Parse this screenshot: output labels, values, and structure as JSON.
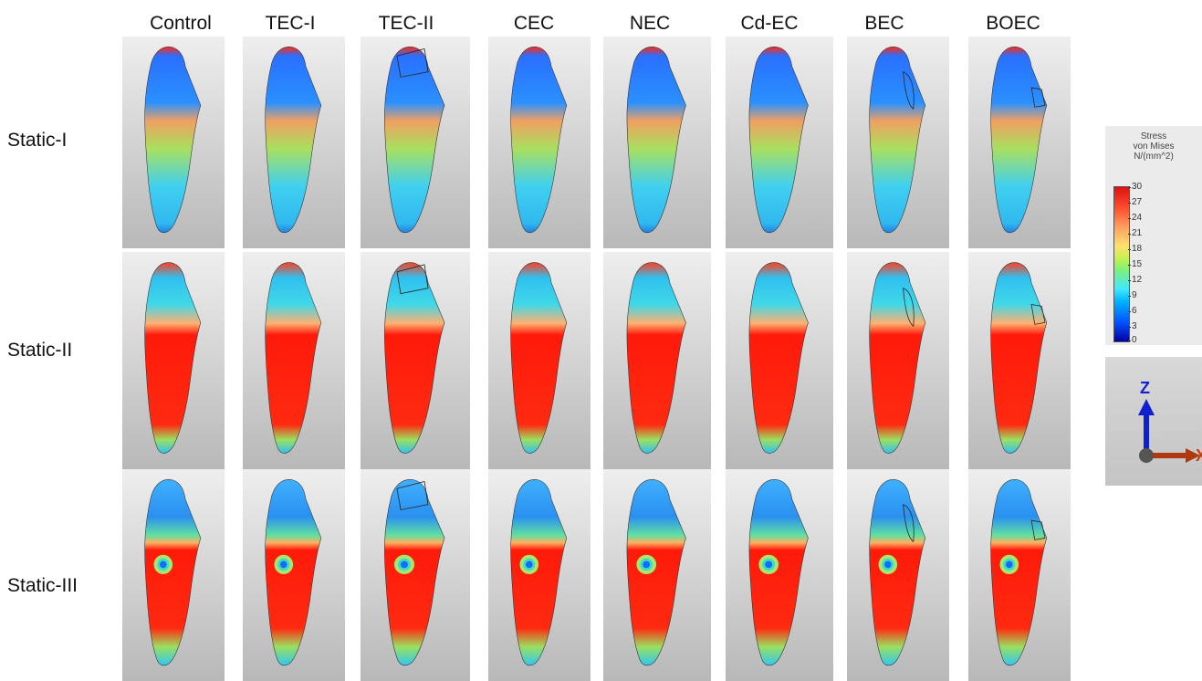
{
  "columns": [
    "Control",
    "TEC-I",
    "TEC-II",
    "CEC",
    "NEC",
    "Cd-EC",
    "BEC",
    "BOEC"
  ],
  "rows": [
    "Static-I",
    "Static-II",
    "Static-III"
  ],
  "legend": {
    "title_line1": "Stress",
    "title_line2": "von Mises",
    "title_line3": "N/(mm^2)",
    "ticks": [
      "30",
      "27",
      "24",
      "21",
      "18",
      "15",
      "12",
      "9",
      "6",
      "3",
      "0"
    ]
  },
  "axes": {
    "z_label": "Z",
    "x_label": "X",
    "z_color": "#1020d0",
    "x_color": "#c04010"
  },
  "colors": {
    "red": "#ff1a0a",
    "blue": "#1090f0",
    "green": "#7ed860",
    "cyan": "#30c8f0"
  }
}
